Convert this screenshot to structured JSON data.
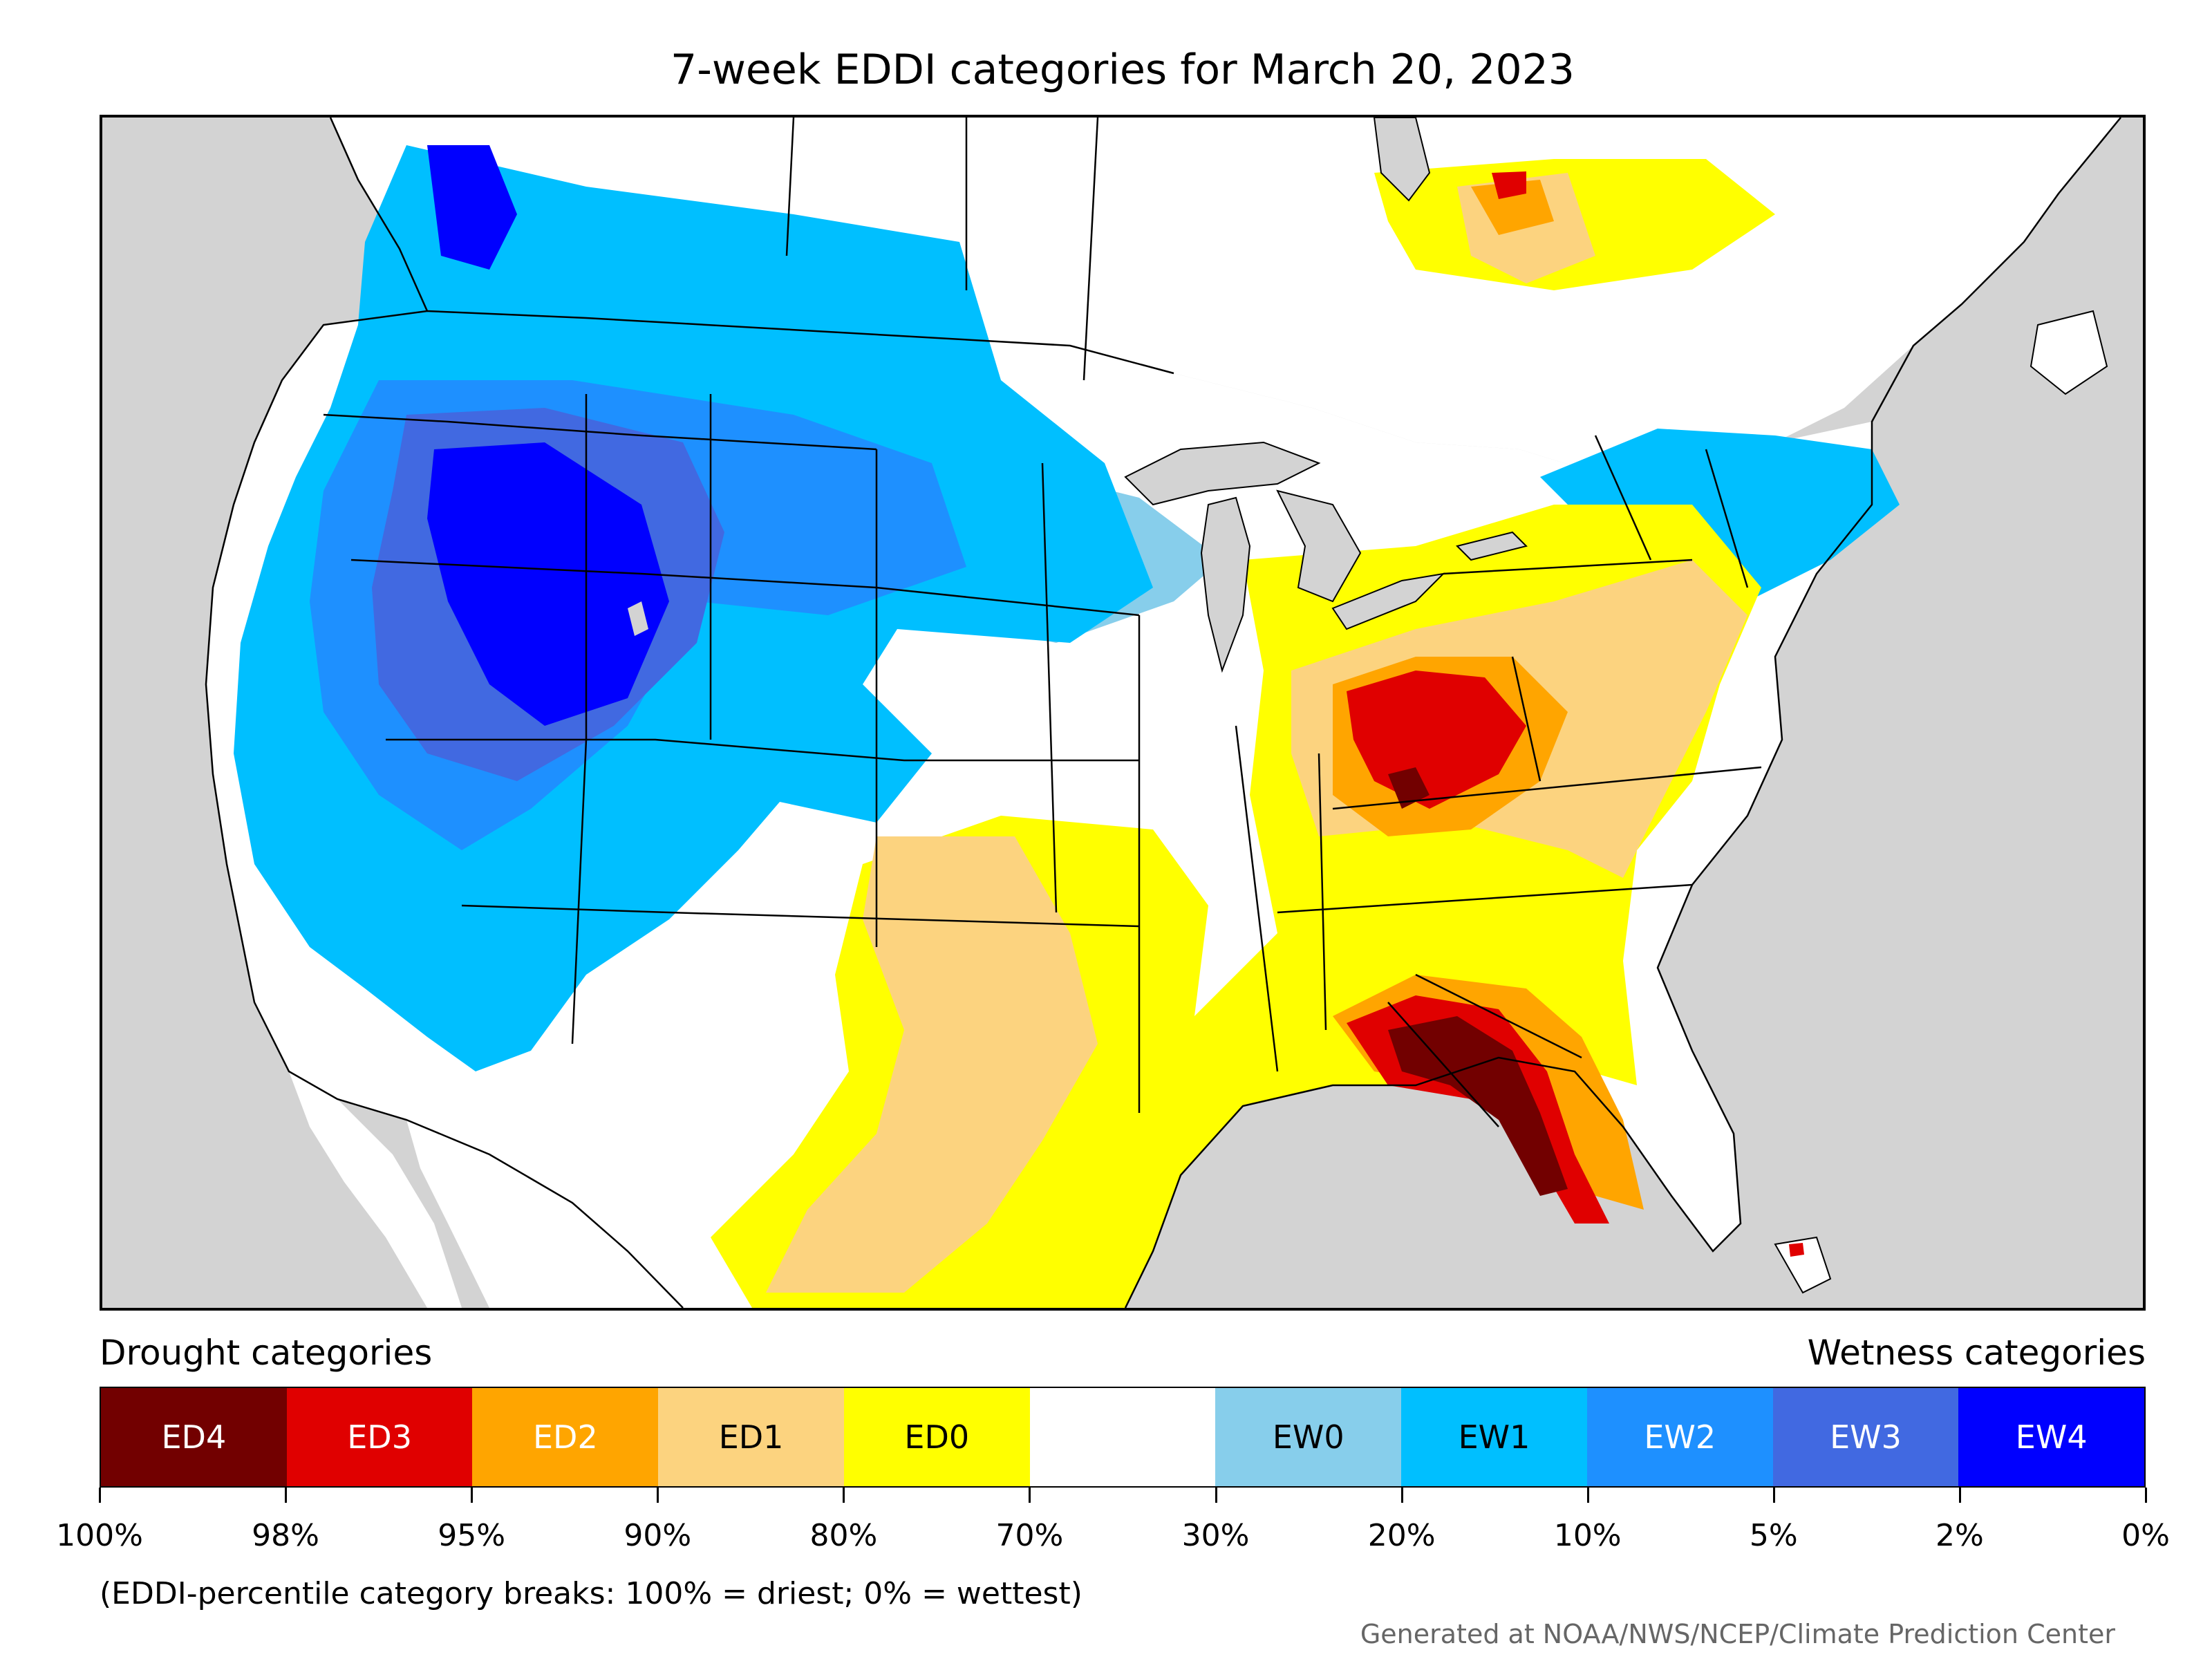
{
  "title": "7-week EDDI categories for March 20, 2023",
  "legend": {
    "drought_heading": "Drought categories",
    "wetness_heading": "Wetness categories",
    "categories": [
      {
        "label": "ED4",
        "color": "#720000",
        "text_color": "#ffffff"
      },
      {
        "label": "ED3",
        "color": "#e00000",
        "text_color": "#ffffff"
      },
      {
        "label": "ED2",
        "color": "#ffa500",
        "text_color": "#ffffff"
      },
      {
        "label": "ED1",
        "color": "#fcd37f",
        "text_color": "#000000"
      },
      {
        "label": "ED0",
        "color": "#ffff00",
        "text_color": "#000000"
      },
      {
        "label": "",
        "color": "#ffffff",
        "text_color": "#000000"
      },
      {
        "label": "EW0",
        "color": "#87ceeb",
        "text_color": "#000000"
      },
      {
        "label": "EW1",
        "color": "#00bfff",
        "text_color": "#000000"
      },
      {
        "label": "EW2",
        "color": "#1e90ff",
        "text_color": "#ffffff"
      },
      {
        "label": "EW3",
        "color": "#4169e1",
        "text_color": "#ffffff"
      },
      {
        "label": "EW4",
        "color": "#0000ff",
        "text_color": "#ffffff"
      }
    ],
    "breaks": [
      "100%",
      "98%",
      "95%",
      "90%",
      "80%",
      "70%",
      "30%",
      "20%",
      "10%",
      "5%",
      "2%",
      "0%"
    ]
  },
  "note": "(EDDI-percentile category breaks: 100% = driest; 0% = wettest)",
  "credit": "Generated at NOAA/NWS/NCEP/Climate Prediction Center",
  "map_colors": {
    "ocean": "#d3d3d3",
    "lakes": "#d3d3d3",
    "land": "#ffffff",
    "borders": "#000000"
  }
}
